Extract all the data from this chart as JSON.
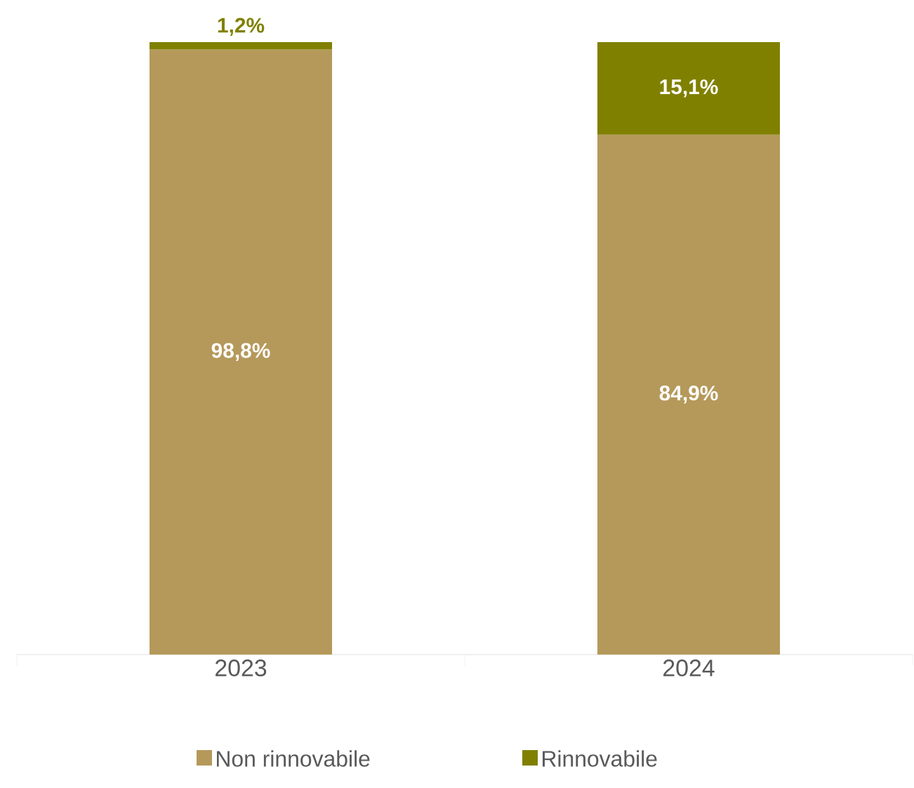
{
  "chart_data": {
    "type": "bar",
    "stacked": true,
    "categories": [
      "2023",
      "2024"
    ],
    "series": [
      {
        "name": "Non rinnovabile",
        "color": "#b5995a",
        "values": [
          98.8,
          84.9
        ],
        "value_labels": [
          "98,8%",
          "84,9%"
        ]
      },
      {
        "name": "Rinnovabile",
        "color": "#808000",
        "values": [
          1.2,
          15.1
        ],
        "value_labels": [
          "1,2%",
          "15,1%"
        ]
      }
    ],
    "legend": "bottom"
  }
}
